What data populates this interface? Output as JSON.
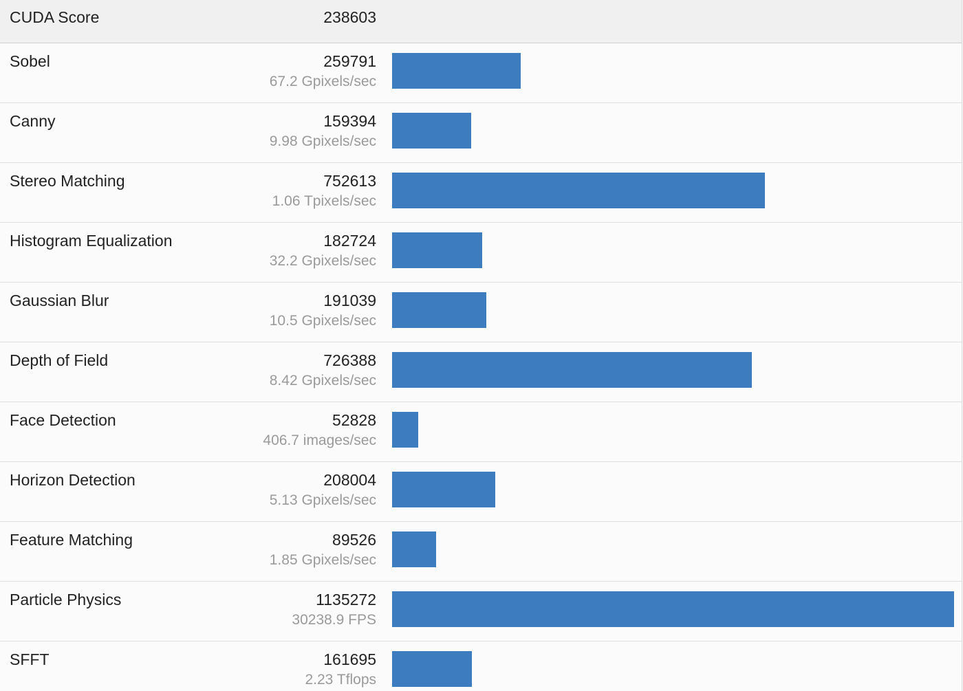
{
  "header": {
    "label": "CUDA Score",
    "score": "238603"
  },
  "chart_data": {
    "type": "bar",
    "orientation": "horizontal",
    "xlim": [
      0,
      1135272
    ],
    "categories": [
      "Sobel",
      "Canny",
      "Stereo Matching",
      "Histogram Equalization",
      "Gaussian Blur",
      "Depth of Field",
      "Face Detection",
      "Horizon Detection",
      "Feature Matching",
      "Particle Physics",
      "SFFT"
    ],
    "values": [
      259791,
      159394,
      752613,
      182724,
      191039,
      726388,
      52828,
      208004,
      89526,
      1135272,
      161695
    ],
    "rates": [
      "67.2 Gpixels/sec",
      "9.98 Gpixels/sec",
      "1.06 Tpixels/sec",
      "32.2 Gpixels/sec",
      "10.5 Gpixels/sec",
      "8.42 Gpixels/sec",
      "406.7 images/sec",
      "5.13 Gpixels/sec",
      "1.85 Gpixels/sec",
      "30238.9 FPS",
      "2.23 Tflops"
    ],
    "bar_color": "#3d7dbf"
  }
}
